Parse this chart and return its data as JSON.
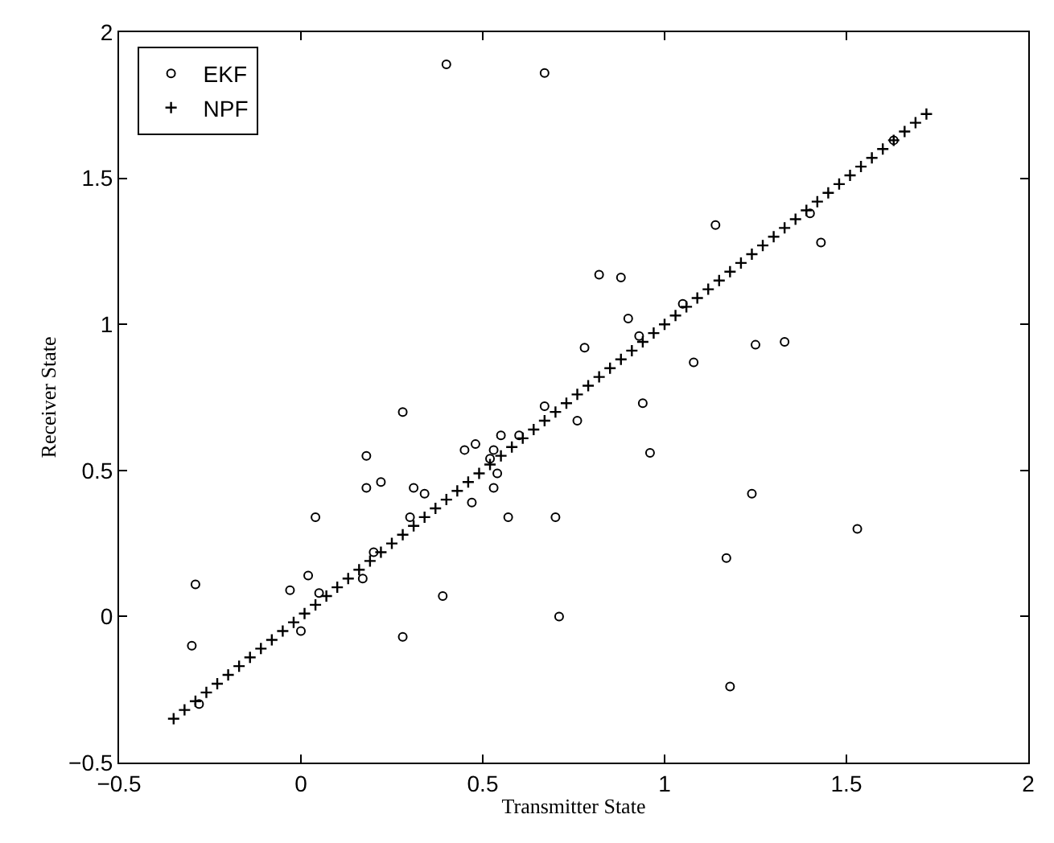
{
  "chart_data": {
    "type": "scatter",
    "xlabel": "Transmitter State",
    "ylabel": "Receiver State",
    "xlim": [
      -0.5,
      2
    ],
    "ylim": [
      -0.5,
      2
    ],
    "xticks": [
      {
        "value": -0.5,
        "label": "−0.5"
      },
      0,
      0.5,
      1,
      1.5,
      2
    ],
    "yticks": [
      {
        "value": -0.5,
        "label": "−0.5"
      },
      0,
      0.5,
      1,
      1.5,
      2
    ],
    "legend": "top left",
    "series": [
      {
        "name": "EKF",
        "color": "#000000",
        "marker": "circle",
        "x": [
          0.4,
          0.67,
          1.14,
          1.43,
          1.4,
          0.82,
          0.88,
          0.9,
          0.93,
          0.78,
          1.08,
          1.25,
          1.33,
          0.67,
          0.76,
          0.94,
          1.63,
          1.05,
          0.28,
          0.55,
          0.18,
          0.18,
          0.22,
          0.31,
          0.34,
          0.04,
          0.3,
          0.2,
          0.02,
          -0.03,
          0.05,
          0.17,
          -0.29,
          -0.3,
          0.0,
          0.28,
          0.39,
          -0.28,
          0.45,
          0.48,
          0.47,
          0.53,
          0.54,
          0.53,
          0.57,
          0.52,
          0.7,
          0.71,
          0.96,
          1.24,
          1.17,
          1.53,
          1.18,
          0.6
        ],
        "values": [
          1.89,
          1.86,
          1.34,
          1.28,
          1.38,
          1.17,
          1.16,
          1.02,
          0.96,
          0.92,
          0.87,
          0.93,
          0.94,
          0.72,
          0.67,
          0.73,
          1.63,
          1.07,
          0.7,
          0.62,
          0.55,
          0.44,
          0.46,
          0.44,
          0.42,
          0.34,
          0.34,
          0.22,
          0.14,
          0.09,
          0.08,
          0.13,
          0.11,
          -0.1,
          -0.05,
          -0.07,
          0.07,
          -0.3,
          0.57,
          0.59,
          0.39,
          0.44,
          0.49,
          0.57,
          0.34,
          0.54,
          0.34,
          0.0,
          0.56,
          0.42,
          0.2,
          0.3,
          -0.24,
          0.62
        ]
      },
      {
        "name": "NPF",
        "color": "#000000",
        "marker": "cross",
        "x": [
          -0.35,
          -0.32,
          -0.29,
          -0.26,
          -0.23,
          -0.2,
          -0.17,
          -0.14,
          -0.11,
          -0.08,
          -0.05,
          -0.02,
          0.01,
          0.04,
          0.07,
          0.1,
          0.13,
          0.16,
          0.19,
          0.22,
          0.25,
          0.28,
          0.31,
          0.34,
          0.37,
          0.4,
          0.43,
          0.46,
          0.49,
          0.52,
          0.55,
          0.58,
          0.61,
          0.64,
          0.67,
          0.7,
          0.73,
          0.76,
          0.79,
          0.82,
          0.85,
          0.88,
          0.91,
          0.94,
          0.97,
          1.0,
          1.03,
          1.06,
          1.09,
          1.12,
          1.15,
          1.18,
          1.21,
          1.24,
          1.27,
          1.3,
          1.33,
          1.36,
          1.39,
          1.42,
          1.45,
          1.48,
          1.51,
          1.54,
          1.57,
          1.6,
          1.63,
          1.66,
          1.69,
          1.72
        ],
        "values": [
          -0.35,
          -0.32,
          -0.29,
          -0.26,
          -0.23,
          -0.2,
          -0.17,
          -0.14,
          -0.11,
          -0.08,
          -0.05,
          -0.02,
          0.01,
          0.04,
          0.07,
          0.1,
          0.13,
          0.16,
          0.19,
          0.22,
          0.25,
          0.28,
          0.31,
          0.34,
          0.37,
          0.4,
          0.43,
          0.46,
          0.49,
          0.52,
          0.55,
          0.58,
          0.61,
          0.64,
          0.67,
          0.7,
          0.73,
          0.76,
          0.79,
          0.82,
          0.85,
          0.88,
          0.91,
          0.94,
          0.97,
          1.0,
          1.03,
          1.06,
          1.09,
          1.12,
          1.15,
          1.18,
          1.21,
          1.24,
          1.27,
          1.3,
          1.33,
          1.36,
          1.39,
          1.42,
          1.45,
          1.48,
          1.51,
          1.54,
          1.57,
          1.6,
          1.63,
          1.66,
          1.69,
          1.72
        ]
      }
    ]
  }
}
